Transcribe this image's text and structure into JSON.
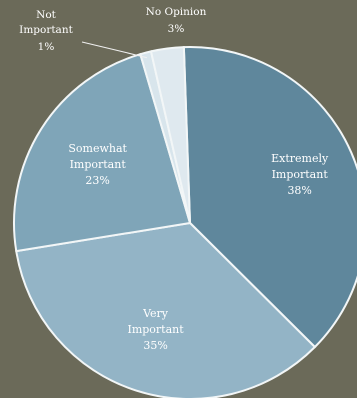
{
  "chart_data": {
    "type": "pie",
    "title": "",
    "slices": [
      {
        "key": "extremely",
        "name_line1": "Extremely",
        "name_line2": "Important",
        "value": 38,
        "value_label": "38%",
        "color": "#5f879c"
      },
      {
        "key": "very",
        "name_line1": "Very",
        "name_line2": "Important",
        "value": 35,
        "value_label": "35%",
        "color": "#93b4c6"
      },
      {
        "key": "somewhat",
        "name_line1": "Somewhat",
        "name_line2": "Important",
        "value": 23,
        "value_label": "23%",
        "color": "#7fa5b8"
      },
      {
        "key": "not",
        "name_line1": "Not",
        "name_line2": "Important",
        "value": 1,
        "value_label": "1%",
        "color": "#d8e5ec"
      },
      {
        "key": "noopinion",
        "name_line1": "No Opinion",
        "name_line2": "",
        "value": 3,
        "value_label": "3%",
        "color": "#dfe9ef"
      }
    ]
  }
}
